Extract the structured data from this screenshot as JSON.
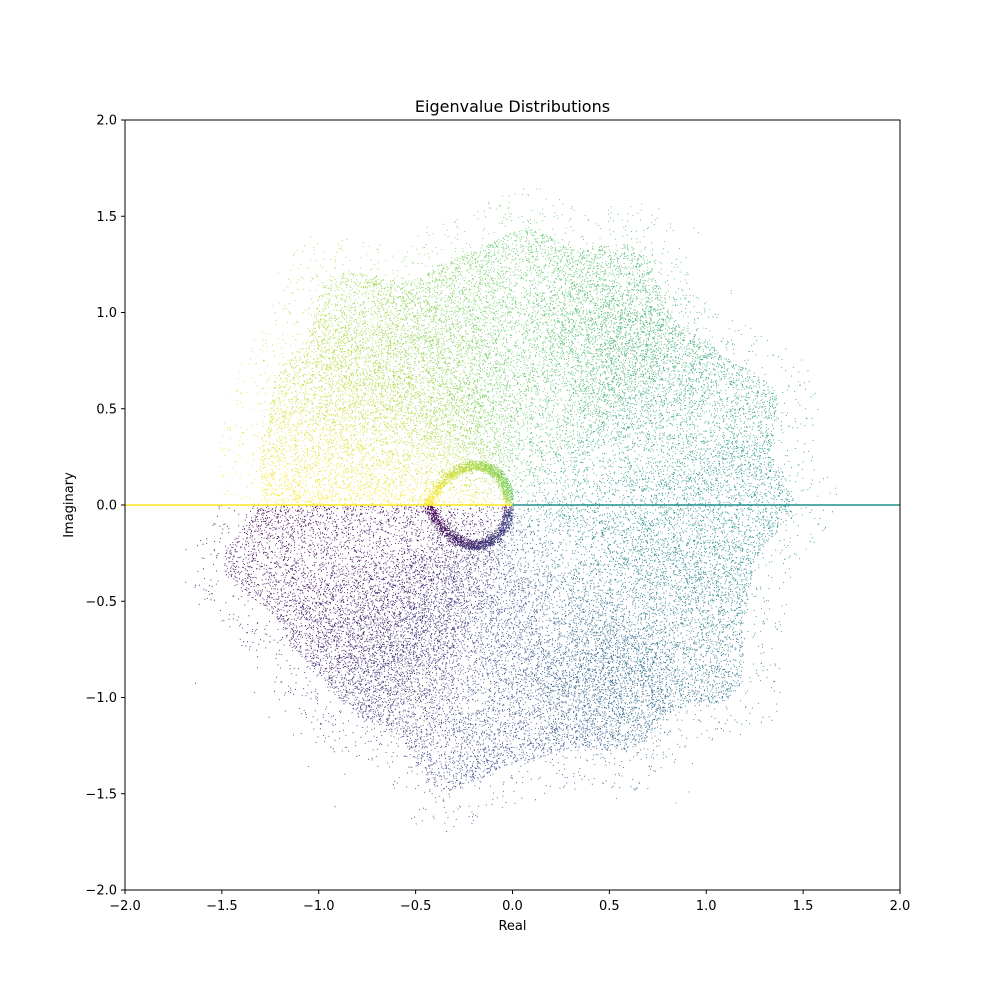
{
  "chart_data": {
    "type": "scatter",
    "title": "Eigenvalue Distributions",
    "xlabel": "Real",
    "ylabel": "Imaginary",
    "xlim": [
      -2.0,
      2.0
    ],
    "ylim": [
      -2.0,
      2.0
    ],
    "xticks": [
      -2.0,
      -1.5,
      -1.0,
      -0.5,
      0.0,
      0.5,
      1.0,
      1.5,
      2.0
    ],
    "yticks": [
      -2.0,
      -1.5,
      -1.0,
      -0.5,
      0.0,
      0.5,
      1.0,
      1.5,
      2.0
    ],
    "xtick_labels": [
      "−2.0",
      "−1.5",
      "−1.0",
      "−0.5",
      "0.0",
      "0.5",
      "1.0",
      "1.5",
      "2.0"
    ],
    "ytick_labels": [
      "−2.0",
      "−1.5",
      "−1.0",
      "−0.5",
      "0.0",
      "0.5",
      "1.0",
      "1.5",
      "2.0"
    ],
    "grid": false,
    "legend": "none",
    "colormap": "viridis",
    "colormap_stops": [
      "#440154",
      "#3b528b",
      "#21918c",
      "#5ec962",
      "#fde725"
    ],
    "point_count": 40000,
    "real_axis_segments": [
      {
        "x": [
          -2.0,
          0.0
        ],
        "y": 0.0,
        "color": "#fde725"
      },
      {
        "x": [
          0.0,
          2.0
        ],
        "y": 0.0,
        "color": "#21918c"
      }
    ],
    "density_hotspots": [
      {
        "x": 0.5,
        "y": 0.85
      },
      {
        "x": 0.5,
        "y": -0.85
      },
      {
        "x": -0.7,
        "y": 0.7
      },
      {
        "x": -0.7,
        "y": -0.7
      },
      {
        "x": -0.3,
        "y": 0.4
      },
      {
        "x": -0.3,
        "y": -0.4
      }
    ]
  }
}
